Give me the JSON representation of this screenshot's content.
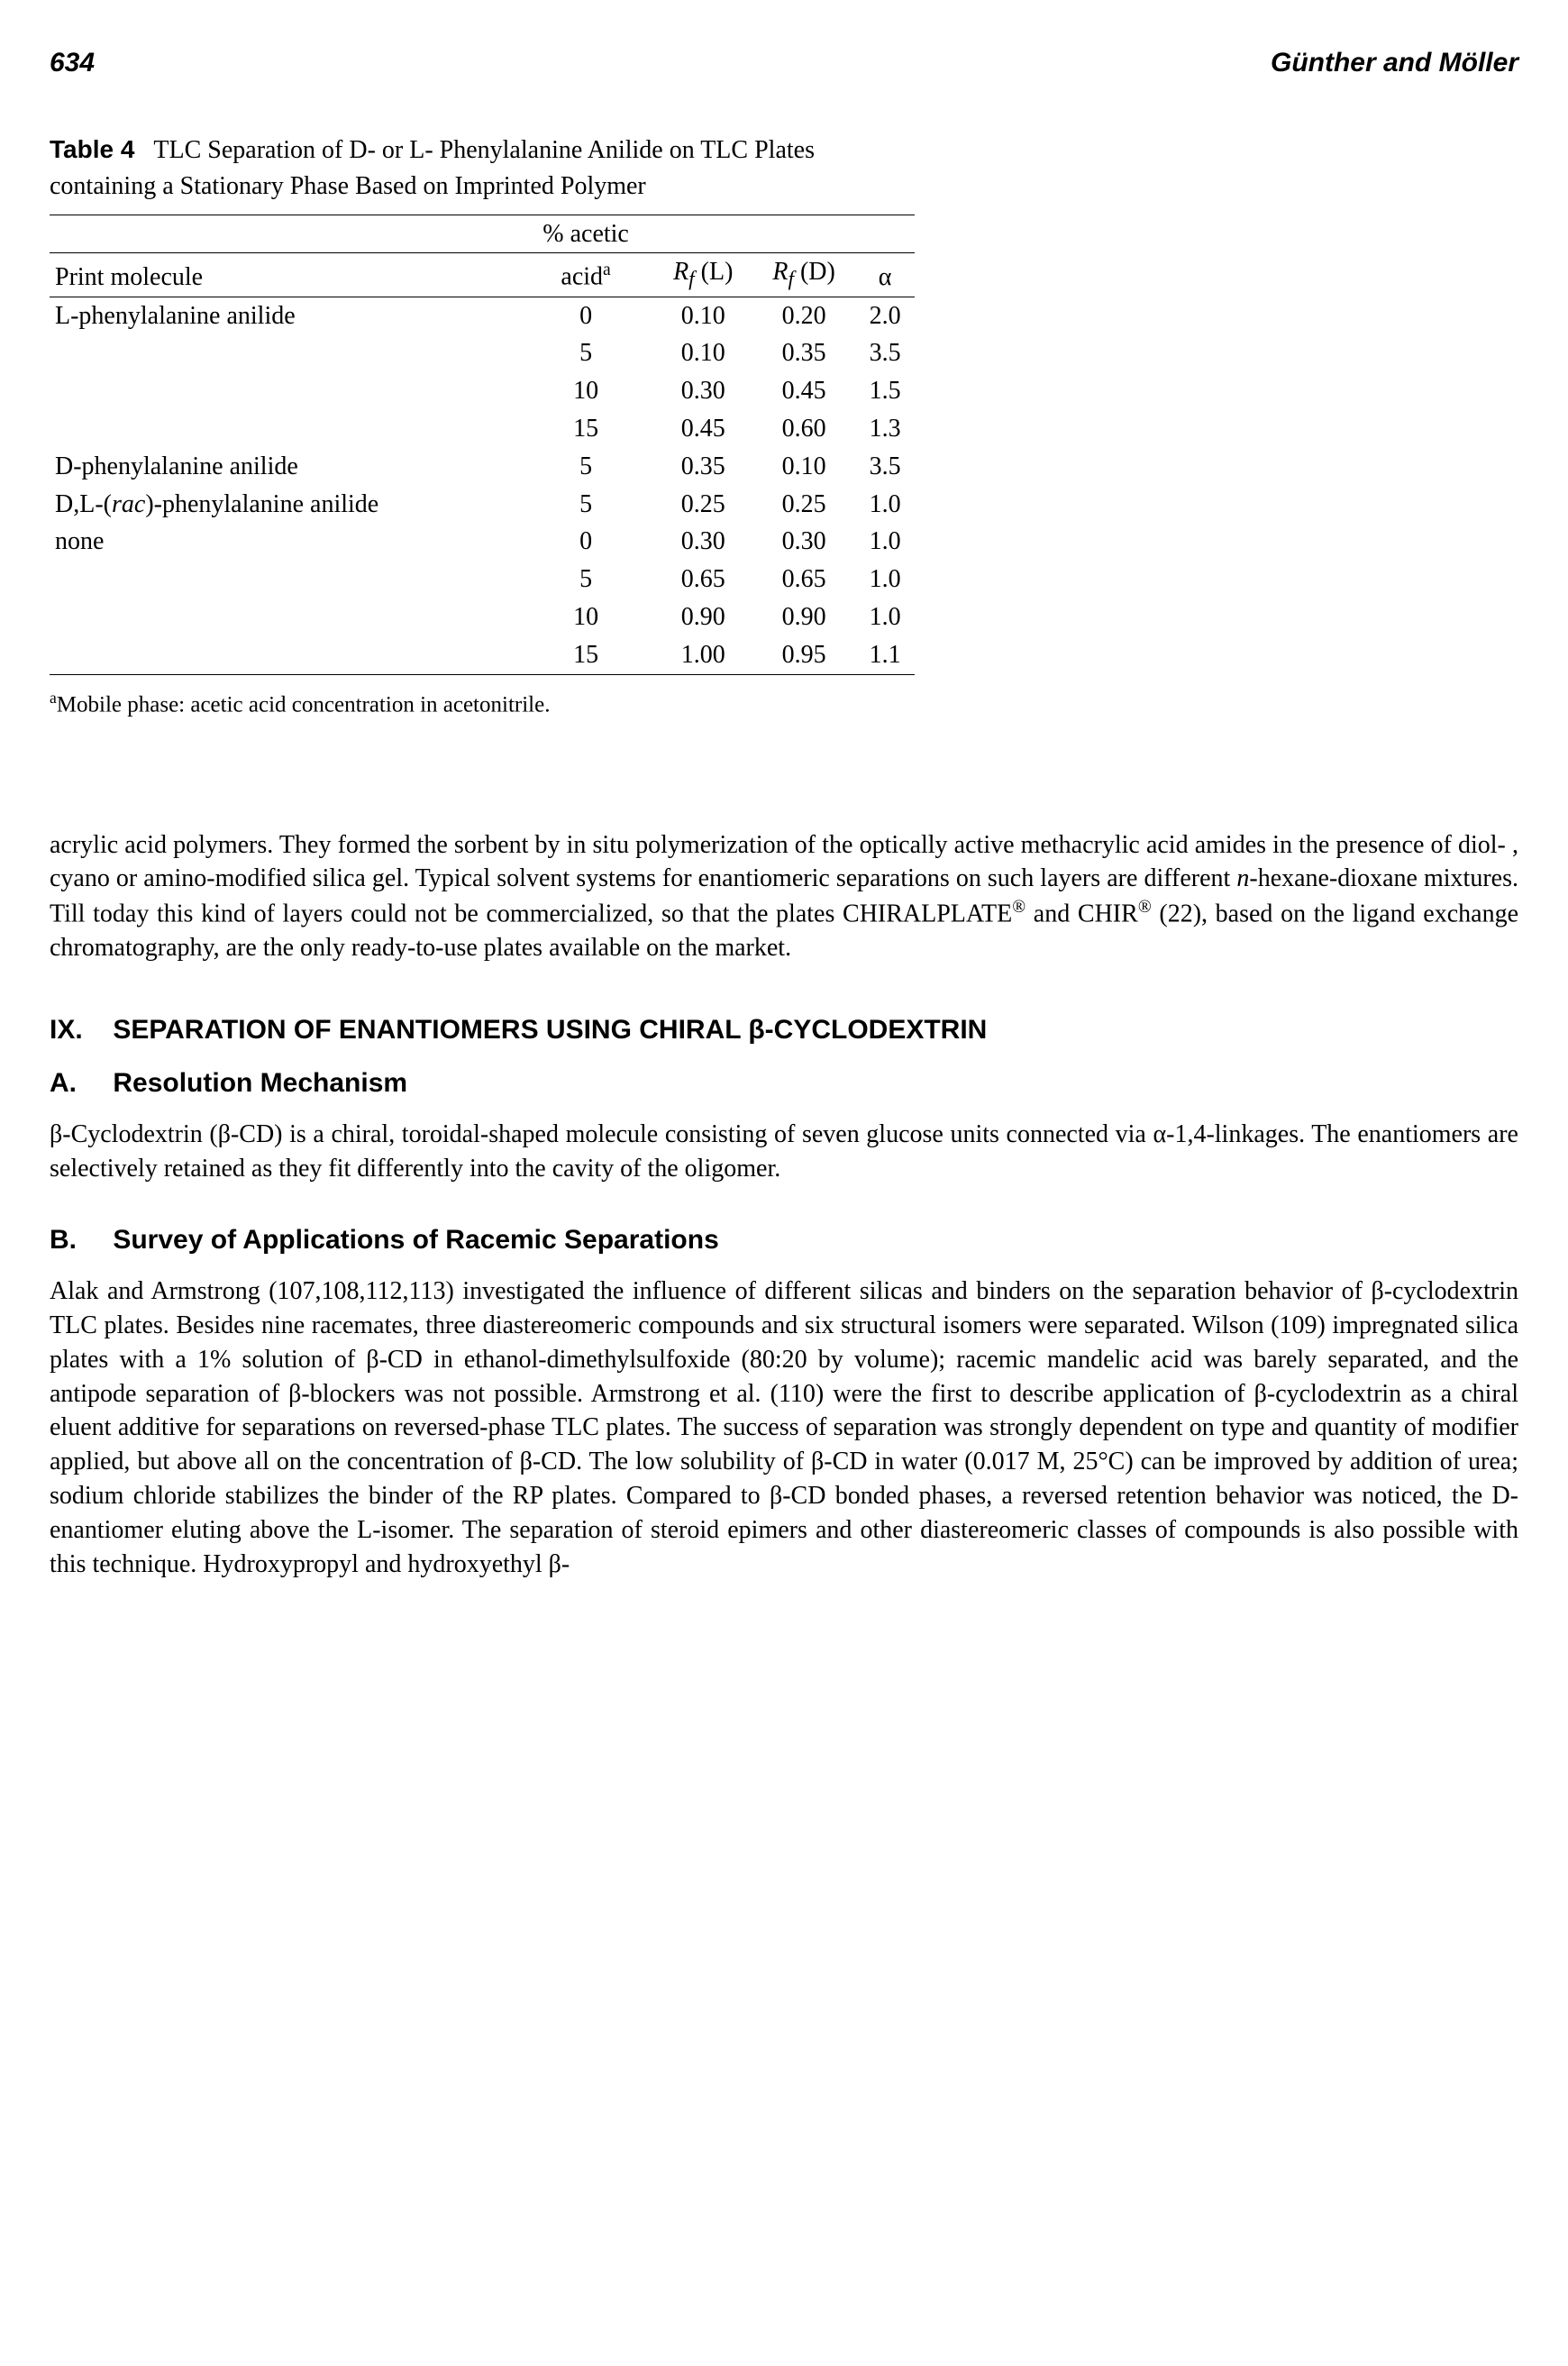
{
  "header": {
    "page_number": "634",
    "authors": "Günther and Möller"
  },
  "table4": {
    "label": "Table 4",
    "caption_rest": "TLC Separation of D- or L- Phenylalanine Anilide on TLC Plates containing a Stationary Phase Based on Imprinted Polymer",
    "columns": {
      "c0": "Print molecule",
      "c1a": "% acetic",
      "c1b": "acid",
      "c1sup": "a",
      "c2_pre": "R",
      "c2_sub": "f",
      "c2_post": " (L)",
      "c3_pre": "R",
      "c3_sub": "f",
      "c3_post": " (D)",
      "c4": "α"
    },
    "rows": [
      {
        "mol": "L-phenylalanine anilide",
        "acid": "0",
        "rl": "0.10",
        "rd": "0.20",
        "a": "2.0"
      },
      {
        "mol": "",
        "acid": "5",
        "rl": "0.10",
        "rd": "0.35",
        "a": "3.5"
      },
      {
        "mol": "",
        "acid": "10",
        "rl": "0.30",
        "rd": "0.45",
        "a": "1.5"
      },
      {
        "mol": "",
        "acid": "15",
        "rl": "0.45",
        "rd": "0.60",
        "a": "1.3"
      },
      {
        "mol": "D-phenylalanine anilide",
        "acid": "5",
        "rl": "0.35",
        "rd": "0.10",
        "a": "3.5"
      },
      {
        "mol": "__DLRAC__",
        "acid": "5",
        "rl": "0.25",
        "rd": "0.25",
        "a": "1.0"
      },
      {
        "mol": "none",
        "acid": "0",
        "rl": "0.30",
        "rd": "0.30",
        "a": "1.0"
      },
      {
        "mol": "",
        "acid": "5",
        "rl": "0.65",
        "rd": "0.65",
        "a": "1.0"
      },
      {
        "mol": "",
        "acid": "10",
        "rl": "0.90",
        "rd": "0.90",
        "a": "1.0"
      },
      {
        "mol": "",
        "acid": "15",
        "rl": "1.00",
        "rd": "0.95",
        "a": "1.1"
      }
    ],
    "dlrac_pre": "D,L-(",
    "dlrac_ital": "rac",
    "dlrac_post": ")-phenylalanine anilide",
    "footnote_sup": "a",
    "footnote": "Mobile phase: acetic acid concentration in acetonitrile."
  },
  "para1": {
    "t1": "acrylic acid polymers. They formed the sorbent by in situ polymerization of the optically active methacrylic acid amides in the presence of diol- , cyano or amino-modified silica gel. Typical solvent systems for enantiomeric separations on such layers are different ",
    "ital1": "n",
    "t2": "-hexane-dioxane mixtures. Till today this kind of layers could not be commercialized, so that the plates CHIRALPLATE",
    "reg1": "®",
    "t3": " and CHIR",
    "reg2": "®",
    "t4": " (22), based on the ligand exchange chromatography, are the only ready-to-use plates available on the market."
  },
  "sectionIX": {
    "prefix": "IX.",
    "title": "SEPARATION OF ENANTIOMERS USING CHIRAL β-CYCLODEXTRIN"
  },
  "sectionA": {
    "prefix": "A.",
    "title": "Resolution Mechanism"
  },
  "paraA": "β-Cyclodextrin (β-CD) is a chiral, toroidal-shaped molecule consisting of seven glucose units connected via α-1,4-linkages. The enantiomers are selectively retained as they fit differently into the cavity of the oligomer.",
  "sectionB": {
    "prefix": "B.",
    "title": "Survey of Applications of Racemic Separations"
  },
  "paraB": "Alak and Armstrong (107,108,112,113) investigated the influence of different silicas and binders on the separation behavior of β-cyclodextrin TLC plates. Besides nine racemates, three diastereomeric compounds and six structural isomers were separated. Wilson (109) impregnated silica plates with a 1% solution of β-CD in ethanol-dimethylsulfoxide (80:20 by volume); racemic mandelic acid was barely separated, and the antipode separation of β-blockers was not possible. Armstrong et al. (110) were the first to describe application of β-cyclodextrin as a chiral eluent additive for separations on reversed-phase TLC plates. The success of separation was strongly dependent on type and quantity of modifier applied, but above all on the concentration of β-CD. The low solubility of β-CD in water (0.017 M, 25°C) can be improved by addition of urea; sodium chloride stabilizes the binder of the RP plates. Compared to β-CD bonded phases, a reversed retention behavior was noticed, the D-enantiomer eluting above the L-isomer. The separation of steroid epimers and other diastereomeric classes of compounds is also possible with this technique. Hydroxypropyl and hydroxyethyl β-"
}
